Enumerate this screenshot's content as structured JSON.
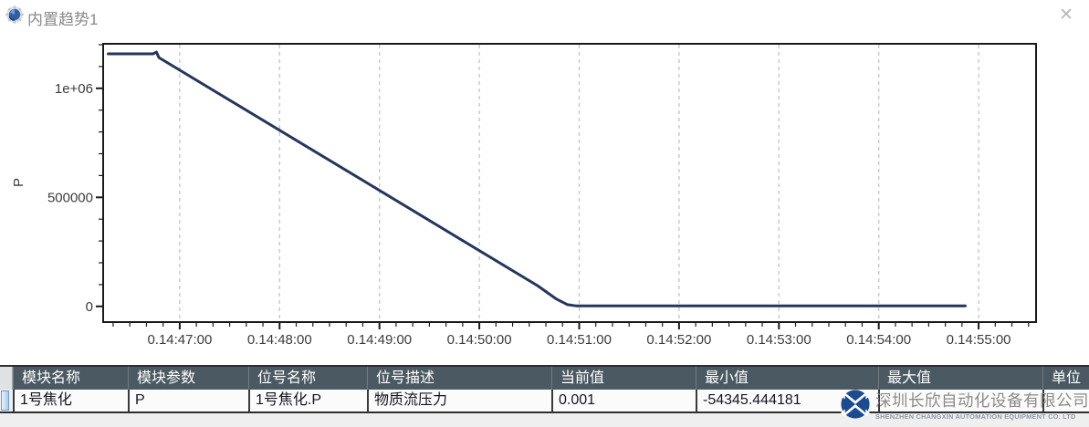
{
  "window": {
    "title": "内置趋势1",
    "close_label": "✕",
    "icon": "trend-globe-icon"
  },
  "chart_data": {
    "type": "line",
    "title": "",
    "xlabel": "",
    "ylabel": "P",
    "legend": "none",
    "grid": "vertical dashed gridlines at each minute",
    "line_color": "#24365c",
    "gridline_color": "#c8c8c8",
    "axis_color": "#1a1a1a",
    "x_axis_note": "time format day.HH:MM:SS, t = seconds relative to 14:47:00",
    "x_range_seconds": [
      -46,
      515
    ],
    "y_range": [
      -71000,
      1204000
    ],
    "x_minor_step_seconds": 10,
    "x_minor_range_seconds": [
      -40,
      510
    ],
    "y_minor_step": 100000,
    "y_minor_range": [
      100000,
      1200000
    ],
    "x_ticks": [
      {
        "t": 0,
        "label": "0.14:47:00"
      },
      {
        "t": 60,
        "label": "0.14:48:00"
      },
      {
        "t": 120,
        "label": "0.14:49:00"
      },
      {
        "t": 180,
        "label": "0.14:50:00"
      },
      {
        "t": 240,
        "label": "0.14:51:00"
      },
      {
        "t": 300,
        "label": "0.14:52:00"
      },
      {
        "t": 360,
        "label": "0.14:53:00"
      },
      {
        "t": 420,
        "label": "0.14:54:00"
      },
      {
        "t": 480,
        "label": "0.14:55:00"
      }
    ],
    "y_ticks": [
      {
        "v": 0,
        "label": "0"
      },
      {
        "v": 500000,
        "label": "500000"
      },
      {
        "v": 1000000,
        "label": "1e+06"
      }
    ],
    "series": [
      {
        "name": "1号焦化.P",
        "points": [
          [
            -43,
            1158000
          ],
          [
            -16,
            1158000
          ],
          [
            -14,
            1166000
          ],
          [
            -12.5,
            1141000
          ],
          [
            215,
            95000
          ],
          [
            226,
            35000
          ],
          [
            233,
            8000
          ],
          [
            238,
            2500
          ],
          [
            472,
            2500
          ]
        ]
      }
    ]
  },
  "table": {
    "columns": [
      {
        "label": "模块名称"
      },
      {
        "label": "模块参数"
      },
      {
        "label": "位号名称"
      },
      {
        "label": "位号描述"
      },
      {
        "label": "当前值"
      },
      {
        "label": "最小值"
      },
      {
        "label": "最大值"
      },
      {
        "label": "单位"
      }
    ],
    "rows": [
      {
        "cells": [
          "1号焦化",
          "P",
          "1号焦化.P",
          "物质流压力",
          "0.001",
          "-54345.444181",
          "",
          ""
        ]
      }
    ]
  },
  "watermark": {
    "company_cn": "深圳长欣自动化设备有限公司",
    "company_en": "SHENZHEN CHANGXIN AUTOMATION EQUIPMENT CO. LTD",
    "logo_color": "#1c4b8f"
  },
  "colors": {
    "table_header_bg": "#4b5963",
    "table_header_text": "#ffffff",
    "row_bg": "#fbfbfb",
    "row_text": "#15151f",
    "title_text": "#8a8a8a",
    "below_table_bg": "#efefef",
    "row_selector_blue": "#aecbe8"
  }
}
